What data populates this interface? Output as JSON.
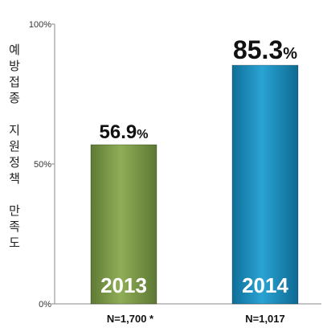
{
  "chart_data": {
    "type": "bar",
    "title": "",
    "xlabel": "",
    "ylabel": "예방접종 지원정책 만족도",
    "ylabel_groups": [
      "예방접종",
      "지원정책",
      "만족도"
    ],
    "ylim": [
      0,
      100
    ],
    "yticks": [
      "0%",
      "50%",
      "100%"
    ],
    "categories": [
      "2013",
      "2014"
    ],
    "values": [
      56.9,
      85.3
    ],
    "value_labels": [
      {
        "number": "56.9",
        "unit": "%"
      },
      {
        "number": "85.3",
        "unit": "%"
      }
    ],
    "sample_labels": [
      "N=1,700 *",
      "N=1,017"
    ],
    "bar_colors": [
      "#7d9a4a",
      "#1b8fbf"
    ],
    "grid": false,
    "legend": "none"
  }
}
